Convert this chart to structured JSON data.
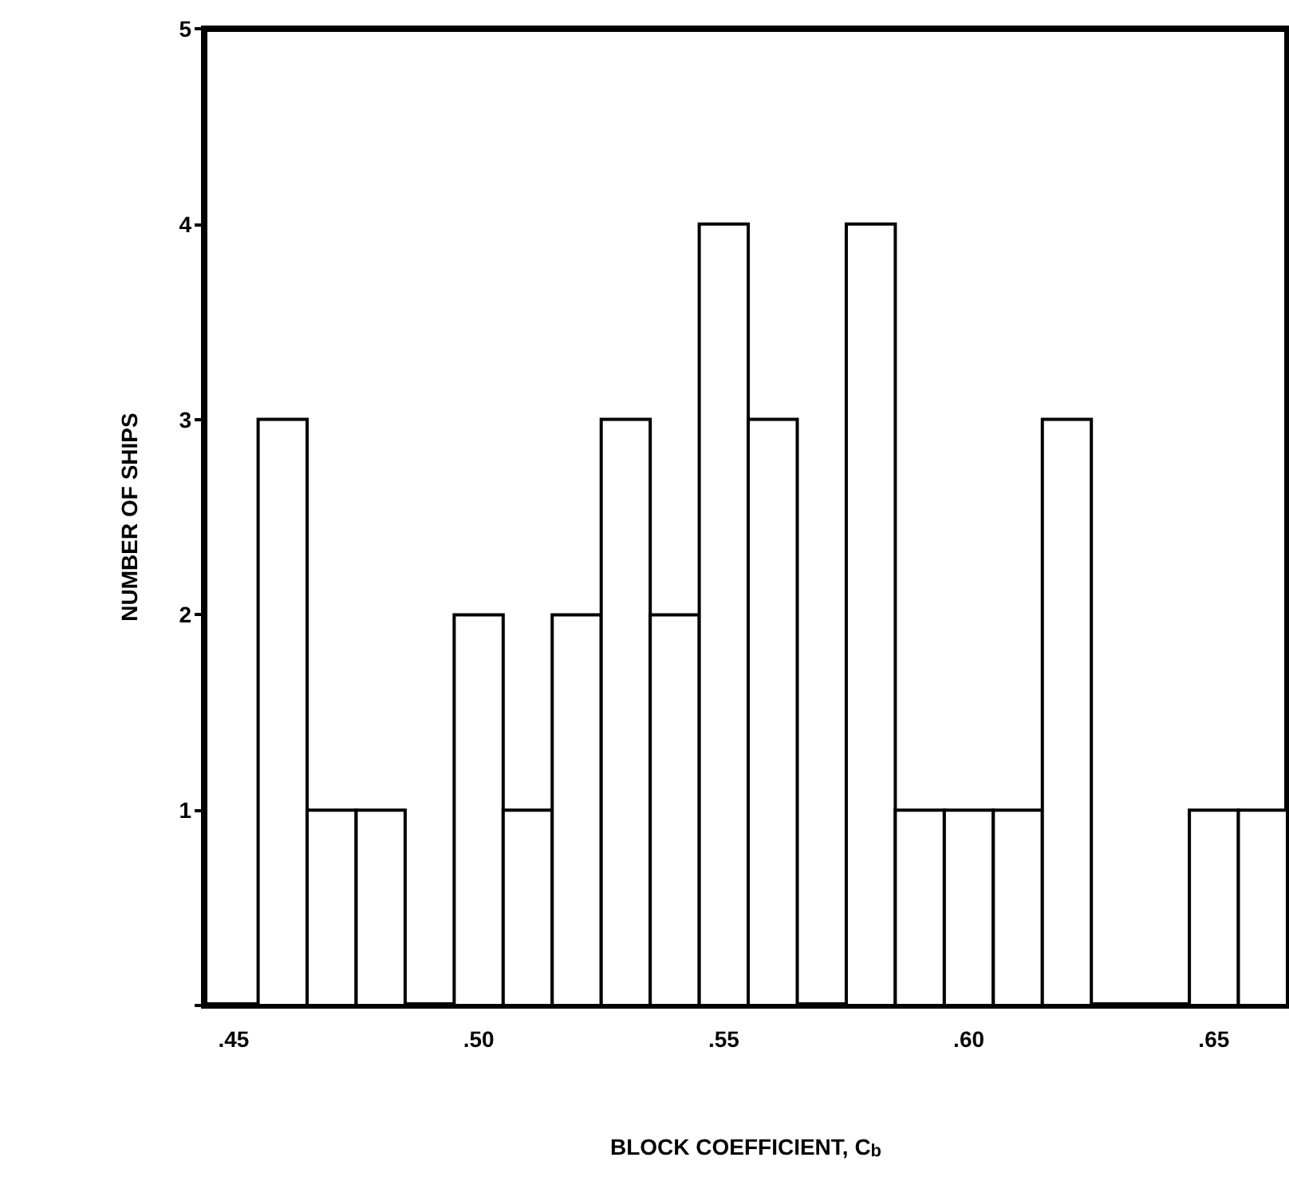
{
  "chart_data": {
    "type": "histogram",
    "xlabel": "BLOCK COEFFICIENT, C$_{b}$",
    "ylabel": "NUMBER OF SHIPS",
    "bins": [
      0.455,
      0.465,
      0.475,
      0.485,
      0.495,
      0.505,
      0.515,
      0.525,
      0.535,
      0.545,
      0.555,
      0.565,
      0.575,
      0.585,
      0.595,
      0.605,
      0.615,
      0.625,
      0.635,
      0.645,
      0.655,
      0.665
    ],
    "values": [
      3,
      1,
      1,
      0,
      2,
      1,
      2,
      3,
      2,
      4,
      3,
      0,
      4,
      1,
      1,
      1,
      3,
      0,
      0,
      1,
      1
    ],
    "color": "#ffffff",
    "xlim": [
      0.444,
      0.665
    ],
    "xticks": [
      {
        "value": 0.45,
        "label": ".45"
      },
      {
        "value": 0.5,
        "label": ".50"
      },
      {
        "value": 0.55,
        "label": ".55"
      },
      {
        "value": 0.6,
        "label": ".60"
      },
      {
        "value": 0.65,
        "label": ".65"
      }
    ],
    "ylim": [
      0,
      5
    ],
    "yticks": [
      {
        "value": 0,
        "label": null
      },
      1,
      2,
      3,
      4,
      5
    ],
    "grid": false
  }
}
